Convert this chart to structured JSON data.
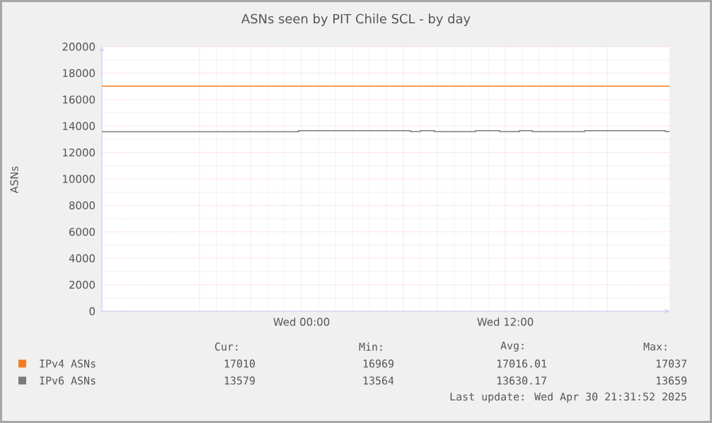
{
  "chart_data": {
    "type": "step",
    "title": "ASNs seen by PIT Chile SCL - by day",
    "ylabel": "ASNs",
    "xlim": [
      "2025-04-29T12:15",
      "2025-04-30T21:40"
    ],
    "ylim": [
      0,
      20000
    ],
    "xticks": [
      {
        "value": "2025-04-29T18:00",
        "label": null
      },
      {
        "value": "2025-04-30T00:00",
        "label": "Wed 00:00"
      },
      {
        "value": "2025-04-30T06:00",
        "label": null
      },
      {
        "value": "2025-04-30T12:00",
        "label": "Wed 12:00"
      },
      {
        "value": "2025-04-30T18:00",
        "label": null
      }
    ],
    "yticks": [
      0,
      2000,
      4000,
      6000,
      8000,
      10000,
      12000,
      14000,
      16000,
      18000,
      20000
    ],
    "grid": true,
    "legend": "bottom left",
    "marker": "none",
    "line_style": "solid",
    "series": [
      {
        "name": "IPv4 ASNs",
        "color": "#f57a20",
        "x": [
          "2025-04-29T12:15",
          "2025-04-30T21:40"
        ],
        "values": [
          17020,
          17020
        ]
      },
      {
        "name": "IPv6 ASNs",
        "color": "#7a7a7a",
        "x": [
          "2025-04-29T12:15",
          "2025-04-29T23:50",
          "2025-04-30T06:25",
          "2025-04-30T07:00",
          "2025-04-30T07:50",
          "2025-04-30T10:15",
          "2025-04-30T11:40",
          "2025-04-30T12:50",
          "2025-04-30T13:35",
          "2025-04-30T16:40",
          "2025-04-30T21:25",
          "2025-04-30T21:40"
        ],
        "values": [
          13570,
          13650,
          13580,
          13650,
          13580,
          13650,
          13580,
          13650,
          13580,
          13650,
          13580,
          13580
        ]
      }
    ],
    "annotations": [
      "Cur:",
      "Min:",
      "Avg:",
      "Max:",
      "17010",
      "16969",
      "17016.01",
      "17037",
      "13579",
      "13564",
      "13630.17",
      "13659",
      "Last update: Wed Apr 30 21:31:52 2025"
    ]
  }
}
